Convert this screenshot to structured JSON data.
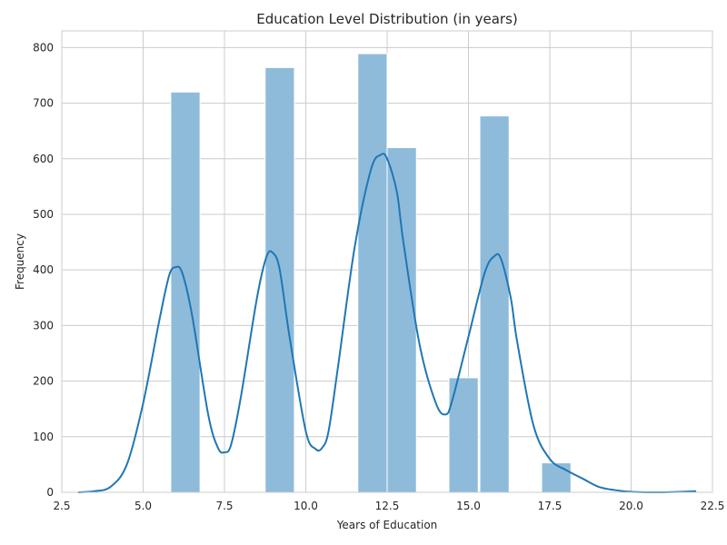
{
  "chart_data": {
    "type": "histogram",
    "title": "Education Level Distribution (in years)",
    "xlabel": "Years of Education",
    "ylabel": "Frequency",
    "xlim": [
      2.5,
      22.5
    ],
    "ylim": [
      0,
      830
    ],
    "xticks": [
      2.5,
      5.0,
      7.5,
      10.0,
      12.5,
      15.0,
      17.5,
      20.0,
      22.5
    ],
    "xtick_labels": [
      "2.5",
      "5.0",
      "7.5",
      "10.0",
      "12.5",
      "15.0",
      "17.5",
      "20.0",
      "22.5"
    ],
    "yticks": [
      0,
      100,
      200,
      300,
      400,
      500,
      600,
      700,
      800
    ],
    "ytick_labels": [
      "0",
      "100",
      "200",
      "300",
      "400",
      "500",
      "600",
      "700",
      "800"
    ],
    "grid": true,
    "bar_color": "#8fbbdb",
    "kde_color": "#1f77b4",
    "bins": [
      {
        "x0": 5.85,
        "x1": 6.75,
        "count": 720
      },
      {
        "x0": 8.75,
        "x1": 9.65,
        "count": 764
      },
      {
        "x0": 11.6,
        "x1": 12.5,
        "count": 789
      },
      {
        "x0": 12.5,
        "x1": 13.4,
        "count": 620
      },
      {
        "x0": 14.4,
        "x1": 15.3,
        "count": 206
      },
      {
        "x0": 15.35,
        "x1": 16.25,
        "count": 677
      },
      {
        "x0": 17.25,
        "x1": 18.15,
        "count": 53
      }
    ],
    "kde": {
      "x": [
        3.0,
        3.5,
        4.0,
        4.5,
        5.0,
        5.5,
        5.8,
        6.0,
        6.2,
        6.5,
        7.0,
        7.3,
        7.5,
        7.7,
        8.0,
        8.5,
        8.8,
        9.0,
        9.2,
        9.5,
        10.0,
        10.3,
        10.5,
        10.7,
        11.0,
        11.5,
        12.0,
        12.3,
        12.5,
        12.8,
        13.0,
        13.5,
        14.0,
        14.3,
        14.5,
        15.0,
        15.5,
        15.8,
        16.0,
        16.3,
        16.5,
        17.0,
        17.5,
        18.0,
        18.5,
        19.0,
        19.5,
        20.0,
        20.5,
        21.0,
        22.0
      ],
      "y": [
        0,
        2,
        10,
        50,
        160,
        310,
        390,
        405,
        395,
        320,
        140,
        80,
        72,
        85,
        170,
        350,
        425,
        430,
        400,
        280,
        110,
        78,
        80,
        110,
        230,
        440,
        580,
        607,
        600,
        540,
        450,
        265,
        160,
        140,
        165,
        280,
        395,
        425,
        420,
        350,
        270,
        120,
        60,
        40,
        25,
        10,
        4,
        1,
        0,
        0,
        2
      ]
    }
  }
}
